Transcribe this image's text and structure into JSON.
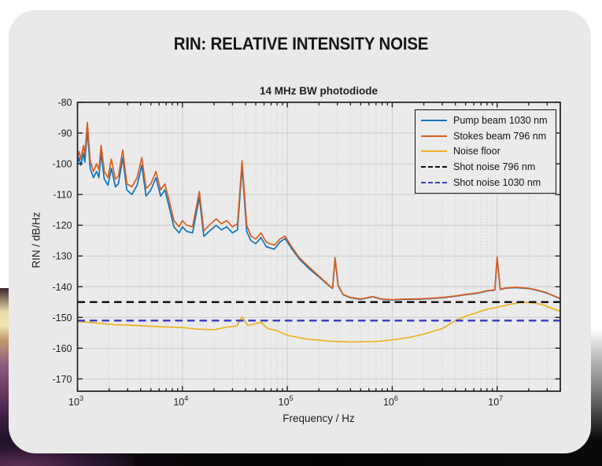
{
  "page": {
    "title": "RIN: RELATIVE INTENSITY NOISE"
  },
  "ui_colors": {
    "card_bg": "#e9e9e9",
    "plot_bg": "#ebebeb",
    "grid_major": "#cbcbcb",
    "grid_minor": "#d3d3d3",
    "axis": "#1f1f1f",
    "tick_text": "#1f1f1f"
  },
  "chart_data": {
    "type": "line",
    "title": "14 MHz BW photodiode",
    "xlabel": "Frequency / Hz",
    "ylabel": "RIN / dB/Hz",
    "x_scale": "log",
    "xlim": [
      1000,
      40000000
    ],
    "ylim": [
      -174,
      -80
    ],
    "y_ticks": [
      -80,
      -90,
      -100,
      -110,
      -120,
      -130,
      -140,
      -150,
      -160,
      -170
    ],
    "x_tick_exponents": [
      3,
      4,
      5,
      6,
      7
    ],
    "grid": true,
    "legend_position": "top-right",
    "series": [
      {
        "name": "Pump beam 1030 nm",
        "color": "#0f75bd",
        "style": "solid",
        "points": [
          [
            1000,
            -100
          ],
          [
            1035,
            -98
          ],
          [
            1075,
            -100.5
          ],
          [
            1140,
            -96.5
          ],
          [
            1175,
            -99.5
          ],
          [
            1240,
            -89
          ],
          [
            1320,
            -101.5
          ],
          [
            1420,
            -104.5
          ],
          [
            1520,
            -102.5
          ],
          [
            1600,
            -104.5
          ],
          [
            1680,
            -96.5
          ],
          [
            1800,
            -105
          ],
          [
            1950,
            -107
          ],
          [
            2100,
            -101.5
          ],
          [
            2300,
            -107.5
          ],
          [
            2450,
            -106.5
          ],
          [
            2700,
            -98
          ],
          [
            2950,
            -108.5
          ],
          [
            3300,
            -110
          ],
          [
            3700,
            -107
          ],
          [
            4100,
            -100.5
          ],
          [
            4500,
            -110.5
          ],
          [
            5000,
            -108.5
          ],
          [
            5600,
            -104.5
          ],
          [
            6200,
            -110.5
          ],
          [
            6800,
            -108.5
          ],
          [
            7600,
            -115
          ],
          [
            8300,
            -120.5
          ],
          [
            9300,
            -122.5
          ],
          [
            10000,
            -120.5
          ],
          [
            11000,
            -122
          ],
          [
            12500,
            -122.5
          ],
          [
            14500,
            -111
          ],
          [
            16000,
            -123.6
          ],
          [
            18000,
            -122
          ],
          [
            21000,
            -120
          ],
          [
            23500,
            -121.5
          ],
          [
            26500,
            -120.5
          ],
          [
            30000,
            -122.5
          ],
          [
            33500,
            -121.5
          ],
          [
            37000,
            -101
          ],
          [
            41000,
            -122
          ],
          [
            45000,
            -125
          ],
          [
            50000,
            -126
          ],
          [
            56000,
            -124
          ],
          [
            63000,
            -127
          ],
          [
            75000,
            -127.8
          ],
          [
            85000,
            -125.5
          ],
          [
            95000,
            -124.3
          ],
          [
            110000,
            -127.6
          ],
          [
            130000,
            -131
          ],
          [
            160000,
            -134
          ],
          [
            200000,
            -136.8
          ],
          [
            240000,
            -139.2
          ],
          [
            270000,
            -140.6
          ],
          [
            285000,
            -131
          ],
          [
            305000,
            -139.7
          ],
          [
            340000,
            -142.6
          ],
          [
            400000,
            -143.6
          ],
          [
            500000,
            -144.1
          ],
          [
            650000,
            -143.3
          ],
          [
            800000,
            -144.1
          ],
          [
            1000000,
            -144.3
          ],
          [
            1300000,
            -144.1
          ],
          [
            1700000,
            -144.1
          ],
          [
            2200000,
            -143.9
          ],
          [
            3000000,
            -143.6
          ],
          [
            4000000,
            -143.1
          ],
          [
            5000000,
            -142.6
          ],
          [
            6500000,
            -142.1
          ],
          [
            8000000,
            -141.4
          ],
          [
            9500000,
            -141.1
          ],
          [
            10000000,
            -130.6
          ],
          [
            10700000,
            -140.9
          ],
          [
            12000000,
            -140.5
          ],
          [
            15000000,
            -140.3
          ],
          [
            20000000,
            -140.6
          ],
          [
            25000000,
            -141.3
          ],
          [
            30000000,
            -142.1
          ],
          [
            40000000,
            -143.9
          ]
        ]
      },
      {
        "name": "Stokes beam 796 nm",
        "color": "#d95f1f",
        "style": "solid",
        "points": [
          [
            1000,
            -98
          ],
          [
            1035,
            -96
          ],
          [
            1075,
            -98.5
          ],
          [
            1140,
            -94
          ],
          [
            1175,
            -97
          ],
          [
            1240,
            -86.5
          ],
          [
            1320,
            -99
          ],
          [
            1420,
            -102.5
          ],
          [
            1520,
            -100
          ],
          [
            1600,
            -102
          ],
          [
            1680,
            -94
          ],
          [
            1800,
            -102.5
          ],
          [
            1950,
            -104.5
          ],
          [
            2100,
            -98.5
          ],
          [
            2300,
            -105
          ],
          [
            2450,
            -104
          ],
          [
            2700,
            -95.5
          ],
          [
            2950,
            -106.5
          ],
          [
            3300,
            -107.5
          ],
          [
            3700,
            -104.5
          ],
          [
            4100,
            -98
          ],
          [
            4500,
            -108
          ],
          [
            5000,
            -106.5
          ],
          [
            5600,
            -102.5
          ],
          [
            6200,
            -108.5
          ],
          [
            6800,
            -106.5
          ],
          [
            7600,
            -113
          ],
          [
            8300,
            -118.5
          ],
          [
            9300,
            -120.5
          ],
          [
            10000,
            -118.5
          ],
          [
            11000,
            -120
          ],
          [
            12500,
            -120.5
          ],
          [
            14500,
            -109
          ],
          [
            16000,
            -121.8
          ],
          [
            18000,
            -120
          ],
          [
            21000,
            -117.9
          ],
          [
            23500,
            -119.5
          ],
          [
            26500,
            -118.5
          ],
          [
            30000,
            -120.5
          ],
          [
            33500,
            -119.5
          ],
          [
            37000,
            -99
          ],
          [
            41000,
            -120
          ],
          [
            45000,
            -123.5
          ],
          [
            50000,
            -124.5
          ],
          [
            56000,
            -122.5
          ],
          [
            63000,
            -125.5
          ],
          [
            75000,
            -126.5
          ],
          [
            85000,
            -124.5
          ],
          [
            95000,
            -123.5
          ],
          [
            110000,
            -127
          ],
          [
            130000,
            -130.5
          ],
          [
            160000,
            -133.5
          ],
          [
            200000,
            -136.5
          ],
          [
            240000,
            -139
          ],
          [
            270000,
            -140.5
          ],
          [
            285000,
            -130.5
          ],
          [
            305000,
            -139.5
          ],
          [
            340000,
            -142.5
          ],
          [
            400000,
            -143.5
          ],
          [
            500000,
            -144
          ],
          [
            650000,
            -143.2
          ],
          [
            800000,
            -144
          ],
          [
            1000000,
            -144.2
          ],
          [
            1300000,
            -144
          ],
          [
            1700000,
            -144
          ],
          [
            2200000,
            -143.8
          ],
          [
            3000000,
            -143.5
          ],
          [
            4000000,
            -143
          ],
          [
            5000000,
            -142.5
          ],
          [
            6500000,
            -142
          ],
          [
            8000000,
            -141.3
          ],
          [
            9500000,
            -141
          ],
          [
            10000000,
            -130.3
          ],
          [
            10700000,
            -140.8
          ],
          [
            12000000,
            -140.4
          ],
          [
            15000000,
            -140.2
          ],
          [
            20000000,
            -140.5
          ],
          [
            25000000,
            -141.2
          ],
          [
            30000000,
            -142
          ],
          [
            40000000,
            -143.8
          ]
        ]
      },
      {
        "name": "Noise floor",
        "color": "#edb120",
        "style": "solid",
        "points": [
          [
            1000,
            -151.3
          ],
          [
            1500,
            -151.8
          ],
          [
            2200,
            -152.3
          ],
          [
            3500,
            -152.6
          ],
          [
            6000,
            -153
          ],
          [
            10000,
            -153.3
          ],
          [
            14000,
            -153.8
          ],
          [
            20000,
            -154
          ],
          [
            26000,
            -153.2
          ],
          [
            33000,
            -152.8
          ],
          [
            37000,
            -149.8
          ],
          [
            42000,
            -152.6
          ],
          [
            50000,
            -152
          ],
          [
            56000,
            -151.6
          ],
          [
            65000,
            -153.6
          ],
          [
            80000,
            -154.3
          ],
          [
            100000,
            -155.8
          ],
          [
            150000,
            -157
          ],
          [
            250000,
            -157.7
          ],
          [
            400000,
            -158
          ],
          [
            700000,
            -157.8
          ],
          [
            1000000,
            -157.3
          ],
          [
            1500000,
            -156.4
          ],
          [
            2000000,
            -155.4
          ],
          [
            3000000,
            -153.6
          ],
          [
            4000000,
            -151
          ],
          [
            5000000,
            -149.6
          ],
          [
            6300000,
            -148.5
          ],
          [
            8000000,
            -147.3
          ],
          [
            10000000,
            -146.7
          ],
          [
            13000000,
            -145.8
          ],
          [
            17000000,
            -145.1
          ],
          [
            22000000,
            -145.2
          ],
          [
            28000000,
            -146
          ],
          [
            35000000,
            -147.3
          ],
          [
            40000000,
            -148
          ]
        ]
      },
      {
        "name": "Shot noise 796 nm",
        "color": "#141414",
        "style": "dashed",
        "value": -145
      },
      {
        "name": "Shot noise 1030 nm",
        "color": "#3f3fc6",
        "style": "dashed",
        "value": -151
      }
    ]
  }
}
